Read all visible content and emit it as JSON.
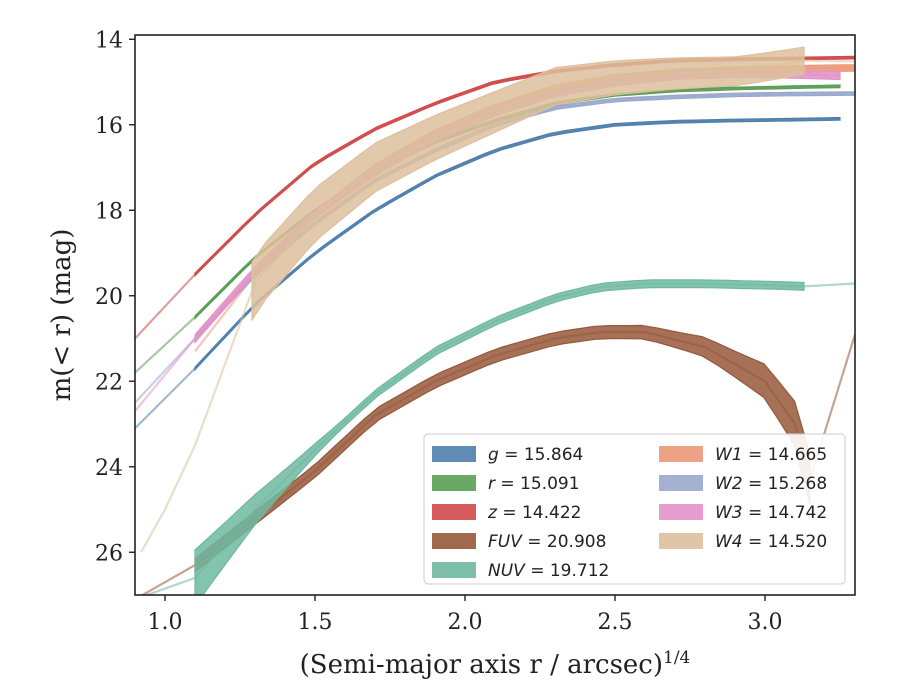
{
  "chart_data": {
    "type": "line",
    "title": "",
    "xlabel": "(Semi-major axis r / arcsec)",
    "xlabel_superscript": "1/4",
    "ylabel": "m(< r) (mag)",
    "xlim": [
      0.9,
      3.3
    ],
    "ylim": [
      27.0,
      13.9
    ],
    "y_inverted": true,
    "grid": false,
    "legend_position": "lower-right",
    "x_ticks": [
      "1.0",
      "1.5",
      "2.0",
      "2.5",
      "3.0"
    ],
    "y_ticks": [
      "14",
      "16",
      "18",
      "20",
      "22",
      "24",
      "26"
    ],
    "series": [
      {
        "name": "g",
        "value": "15.864",
        "color": "#4f7fac",
        "x": [
          0.9,
          1.1,
          1.3,
          1.5,
          1.7,
          1.9,
          2.1,
          2.3,
          2.5,
          2.7,
          2.9,
          3.1,
          3.25
        ],
        "y": [
          23.1,
          21.7,
          20.2,
          19.0,
          18.0,
          17.2,
          16.6,
          16.2,
          16.0,
          15.93,
          15.9,
          15.88,
          15.86
        ],
        "band_start": 1.1,
        "band_end": 3.25,
        "band_width": 0.06
      },
      {
        "name": "r",
        "value": "15.091",
        "color": "#5a9e55",
        "x": [
          0.9,
          1.1,
          1.3,
          1.5,
          1.7,
          1.9,
          2.1,
          2.3,
          2.5,
          2.7,
          2.9,
          3.1,
          3.25
        ],
        "y": [
          21.8,
          20.5,
          19.1,
          18.0,
          17.1,
          16.4,
          15.9,
          15.5,
          15.3,
          15.2,
          15.15,
          15.12,
          15.1
        ],
        "band_start": 1.1,
        "band_end": 3.25,
        "band_width": 0.06
      },
      {
        "name": "z",
        "value": "14.422",
        "color": "#d04a4a",
        "x": [
          0.9,
          1.1,
          1.3,
          1.5,
          1.7,
          1.9,
          2.1,
          2.3,
          2.5,
          2.7,
          2.9,
          3.1,
          3.3
        ],
        "y": [
          21.0,
          19.5,
          18.1,
          16.9,
          16.1,
          15.5,
          15.0,
          14.75,
          14.6,
          14.5,
          14.47,
          14.45,
          14.43
        ],
        "band_start": 1.1,
        "band_end": 3.3,
        "band_width": 0.06
      },
      {
        "name": "FUV",
        "value": "20.908",
        "color": "#96583a",
        "x": [
          0.9,
          1.1,
          1.3,
          1.5,
          1.7,
          1.9,
          2.1,
          2.3,
          2.45,
          2.6,
          2.8,
          3.0,
          3.1,
          3.15,
          3.3
        ],
        "y": [
          27.1,
          26.3,
          25.2,
          24.1,
          22.8,
          22.0,
          21.4,
          21.0,
          20.85,
          20.85,
          21.2,
          22.0,
          23.0,
          24.3,
          20.908
        ],
        "band_start": 1.1,
        "band_end": 3.15,
        "band_width": 0.55
      },
      {
        "name": "NUV",
        "value": "19.712",
        "color": "#6fb8a0",
        "x": [
          0.9,
          1.1,
          1.3,
          1.5,
          1.7,
          1.9,
          2.1,
          2.3,
          2.45,
          2.6,
          2.8,
          3.0,
          3.13,
          3.3
        ],
        "y": [
          27.1,
          26.6,
          25.0,
          23.6,
          22.3,
          21.3,
          20.6,
          20.05,
          19.8,
          19.72,
          19.72,
          19.75,
          19.78,
          19.712
        ],
        "band_start": 1.1,
        "band_end": 3.13,
        "band_width": 0.45
      },
      {
        "name": "W1",
        "value": "14.665",
        "color": "#ec9878",
        "x": [
          1.1,
          1.3,
          1.5,
          1.7,
          1.9,
          2.1,
          2.3,
          2.5,
          2.7,
          2.9,
          3.1,
          3.3
        ],
        "y": [
          21.3,
          19.5,
          18.1,
          17.0,
          16.2,
          15.6,
          15.15,
          14.9,
          14.78,
          14.72,
          14.69,
          14.67
        ],
        "band_start": 1.3,
        "band_end": 3.3,
        "band_width": 0.15
      },
      {
        "name": "W2",
        "value": "15.268",
        "color": "#9aa8cc",
        "x": [
          0.9,
          1.1,
          1.3,
          1.5,
          1.7,
          1.9,
          2.1,
          2.3,
          2.5,
          2.7,
          2.9,
          3.1,
          3.3
        ],
        "y": [
          22.5,
          21.0,
          19.5,
          18.3,
          17.3,
          16.6,
          16.0,
          15.6,
          15.42,
          15.35,
          15.3,
          15.28,
          15.27
        ],
        "band_start": 1.1,
        "band_end": 3.3,
        "band_width": 0.08
      },
      {
        "name": "W3",
        "value": "14.742",
        "color": "#e293c8",
        "x": [
          0.9,
          1.1,
          1.3,
          1.5,
          1.7,
          1.9,
          2.1,
          2.3,
          2.5,
          2.7,
          2.9,
          3.1,
          3.25
        ],
        "y": [
          22.7,
          21.0,
          19.4,
          18.1,
          17.1,
          16.3,
          15.7,
          15.25,
          15.0,
          14.85,
          14.8,
          14.82,
          14.85
        ],
        "band_start": 1.1,
        "band_end": 3.25,
        "band_width": 0.18
      },
      {
        "name": "W4",
        "value": "14.520",
        "color": "#ddc09c",
        "x": [
          0.92,
          1.0,
          1.1,
          1.3,
          1.5,
          1.7,
          1.9,
          2.1,
          2.3,
          2.5,
          2.7,
          2.9,
          3.0,
          3.13,
          3.3
        ],
        "y": [
          26.0,
          25.0,
          23.5,
          19.7,
          18.1,
          17.0,
          16.3,
          15.7,
          15.1,
          14.9,
          14.8,
          14.75,
          14.65,
          14.5,
          14.52
        ],
        "band_start": 1.29,
        "band_end": 3.13,
        "band_width": 1.1
      }
    ]
  }
}
